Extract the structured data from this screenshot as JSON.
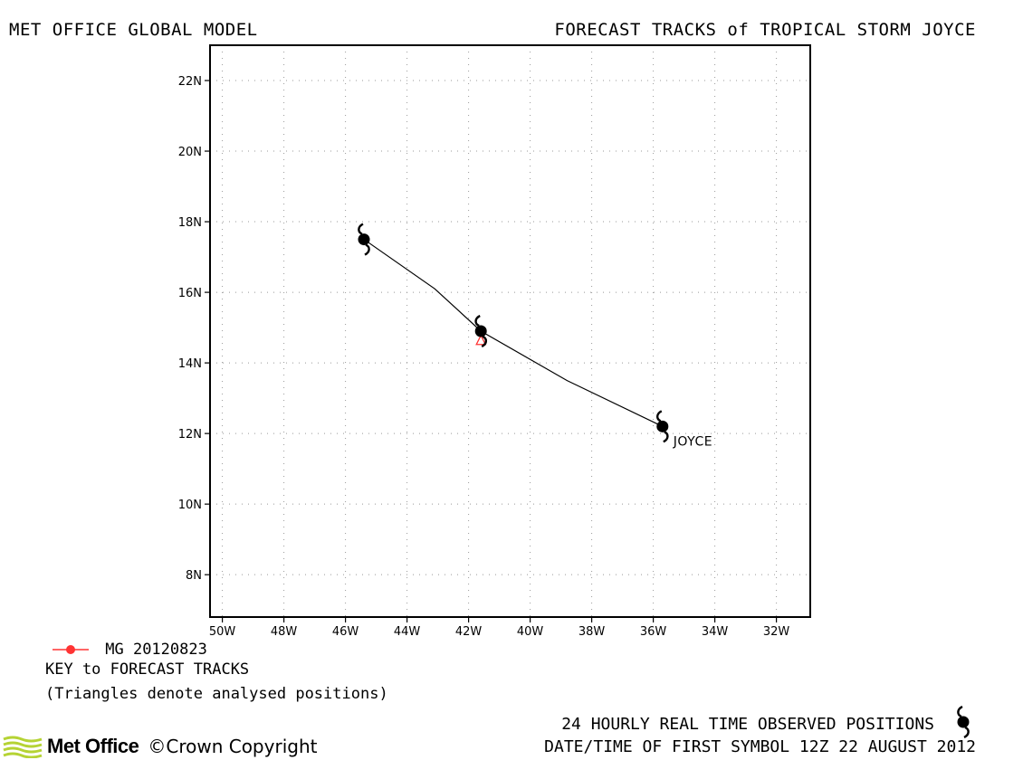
{
  "header": {
    "left_title": "MET OFFICE GLOBAL MODEL",
    "right_title": "FORECAST TRACKS of TROPICAL STORM JOYCE"
  },
  "chart_data": {
    "type": "map",
    "projection": "lat-lon",
    "xlim": [
      -50.4,
      -30.9
    ],
    "ylim": [
      6.8,
      23.0
    ],
    "grid": true,
    "lon_ticks": [
      -50,
      -48,
      -46,
      -44,
      -42,
      -40,
      -38,
      -36,
      -34,
      -32
    ],
    "lon_tick_labels": [
      "50W",
      "48W",
      "46W",
      "44W",
      "42W",
      "40W",
      "38W",
      "36W",
      "34W",
      "32W"
    ],
    "lat_ticks": [
      8,
      10,
      12,
      14,
      16,
      18,
      20,
      22
    ],
    "lat_tick_labels": [
      "8N",
      "10N",
      "12N",
      "14N",
      "16N",
      "18N",
      "20N",
      "22N"
    ],
    "observed_track": {
      "storm_label": "JOYCE",
      "points": [
        {
          "lon": -35.7,
          "lat": 12.2
        },
        {
          "lon": -38.8,
          "lat": 13.5
        },
        {
          "lon": -41.6,
          "lat": 14.9
        },
        {
          "lon": -43.1,
          "lat": 16.1
        },
        {
          "lon": -45.4,
          "lat": 17.5
        }
      ],
      "symbol_positions": [
        {
          "lon": -35.7,
          "lat": 12.2
        },
        {
          "lon": -41.6,
          "lat": 14.9
        },
        {
          "lon": -45.4,
          "lat": 17.5
        }
      ],
      "color": "#000000"
    },
    "forecast_tracks": [
      {
        "name": "MG 20120823",
        "color": "#ff3333",
        "analysed_positions": [
          {
            "lon": -41.6,
            "lat": 14.65
          }
        ]
      }
    ]
  },
  "legend": {
    "track_name": "MG 20120823",
    "key_title": "KEY to FORECAST TRACKS",
    "key_note": "(Triangles denote analysed positions)"
  },
  "footer": {
    "observed_label": "24 HOURLY REAL TIME OBSERVED POSITIONS",
    "first_symbol": "DATE/TIME OF FIRST SYMBOL 12Z 22 AUGUST 2012",
    "brand": "Met Office",
    "copyright": "©Crown Copyright"
  },
  "colors": {
    "brand_green": "#b5d334",
    "forecast_red": "#ff3333"
  }
}
